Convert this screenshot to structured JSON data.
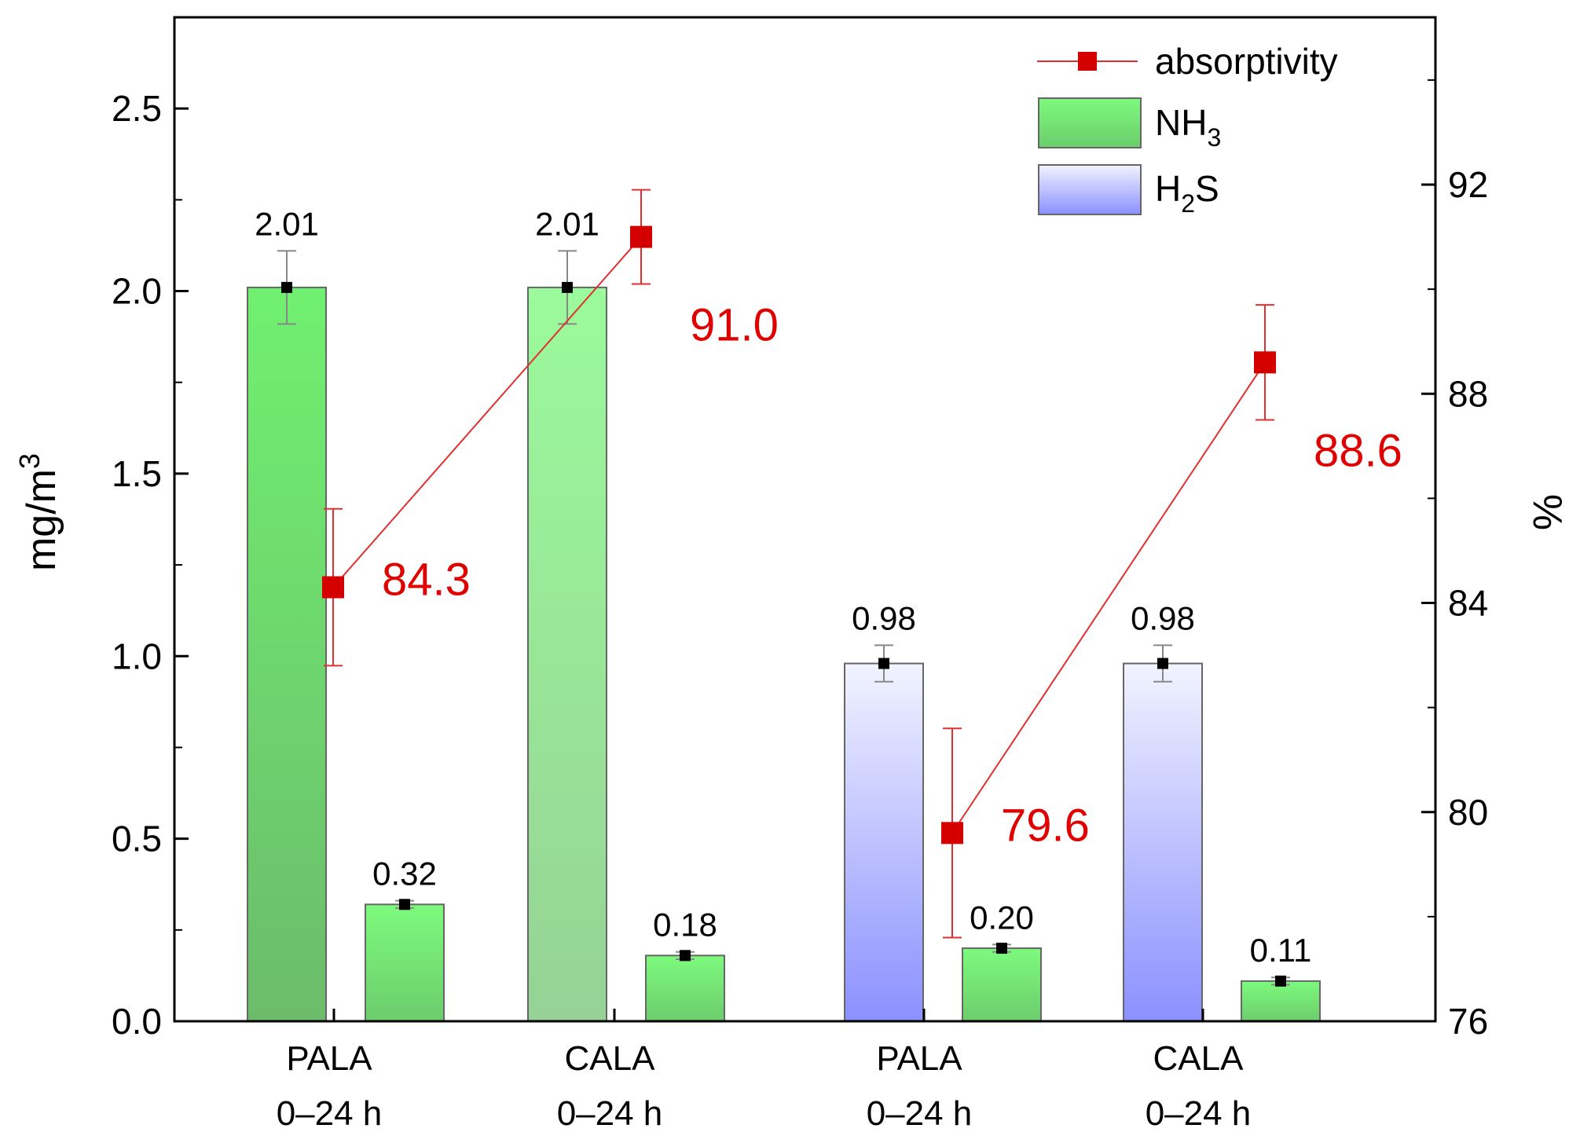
{
  "chart_data": {
    "type": "bar",
    "categories": [
      {
        "line1": "PALA",
        "line2": "0–24 h"
      },
      {
        "line1": "CALA",
        "line2": "0–24 h"
      },
      {
        "line1": "PALA",
        "line2": "0–24 h"
      },
      {
        "line1": "CALA",
        "line2": "0–24 h"
      }
    ],
    "bars": [
      {
        "category": 0,
        "slot": "left",
        "value": 2.01,
        "error": 0.1,
        "label": "2.01",
        "fill": "nh3_dark"
      },
      {
        "category": 0,
        "slot": "right",
        "value": 0.32,
        "error": 0.01,
        "label": "0.32",
        "fill": "nh3"
      },
      {
        "category": 1,
        "slot": "left",
        "value": 2.01,
        "error": 0.1,
        "label": "2.01",
        "fill": "nh3_light"
      },
      {
        "category": 1,
        "slot": "right",
        "value": 0.18,
        "error": 0.01,
        "label": "0.18",
        "fill": "nh3"
      },
      {
        "category": 2,
        "slot": "left",
        "value": 0.98,
        "error": 0.05,
        "label": "0.98",
        "fill": "h2s"
      },
      {
        "category": 2,
        "slot": "right",
        "value": 0.2,
        "error": 0.01,
        "label": "0.20",
        "fill": "nh3"
      },
      {
        "category": 3,
        "slot": "left",
        "value": 0.98,
        "error": 0.05,
        "label": "0.98",
        "fill": "h2s"
      },
      {
        "category": 3,
        "slot": "right",
        "value": 0.11,
        "error": 0.01,
        "label": "0.11",
        "fill": "nh3"
      }
    ],
    "absorptivity": {
      "name": "absorptivity",
      "segments": [
        [
          {
            "category": 0,
            "value": 84.3,
            "error": 1.5,
            "label": "84.3"
          },
          {
            "category": 1,
            "value": 91.0,
            "error": 0.9,
            "label": "91.0"
          }
        ],
        [
          {
            "category": 2,
            "value": 79.6,
            "error": 2.0,
            "label": "79.6"
          },
          {
            "category": 3,
            "value": 88.6,
            "error": 1.1,
            "label": "88.6"
          }
        ]
      ]
    },
    "ylabel": "mg/m",
    "ylabel_sup": "3",
    "y2label": "%",
    "ylim": [
      0,
      2.75
    ],
    "y2lim": [
      76,
      95.2
    ],
    "yticks": [
      "0.0",
      "0.5",
      "1.0",
      "1.5",
      "2.0",
      "2.5"
    ],
    "y2ticks": [
      "76",
      "80",
      "84",
      "88",
      "92"
    ],
    "legend": [
      {
        "key": "absorptivity",
        "label": "absorptivity",
        "sub": "",
        "suffix": ""
      },
      {
        "key": "nh3",
        "label": "NH",
        "sub": "3",
        "suffix": ""
      },
      {
        "key": "h2s",
        "label": "H",
        "sub": "2",
        "suffix": "S"
      }
    ],
    "legend_position": "top-right",
    "colors": {
      "line": "#e03030",
      "marker": "#d40000",
      "label": "#e00000",
      "point_marker": "#000000",
      "bar_error": "#888888"
    }
  }
}
